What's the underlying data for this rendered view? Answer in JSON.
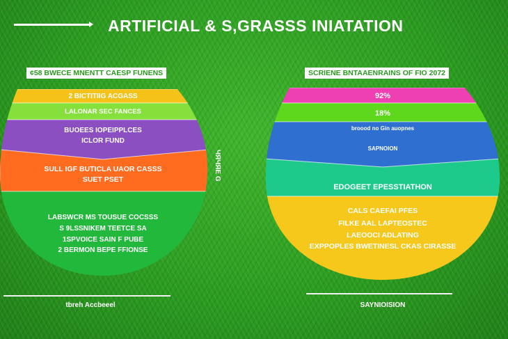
{
  "title": "ARTIFICIAL & S,GRASSS INIATATION",
  "side_label": "ЧЯЧЯЕ G",
  "colors": {
    "background": "#2a9a1f",
    "text": "#ffffff"
  },
  "chart_data": [
    {
      "type": "pie",
      "title": "¢58 BWECE MNENTT CAESP FUNENS",
      "footer": "tbreh Accbeeel",
      "segments": [
        {
          "lines": [
            "2 BICTITIIG ACGASS"
          ],
          "color": "#f5c21a"
        },
        {
          "lines": [
            "LALONAR SEC FANCES"
          ],
          "color": "#86e03c"
        },
        {
          "lines": [
            "BUOEES IOPEIPPLCES",
            "ICLOR FUND"
          ],
          "color": "#8b4fc2"
        },
        {
          "lines": [
            "SULL IGF BUTICLA UAOR CASSS",
            "SUET PSET"
          ],
          "color": "#ff6b1f"
        },
        {
          "lines": [
            "LABSWCR MS TOUSUE COCSSS",
            "S 9LSSNIKEM TEETCE SA",
            "1SPVOICE SAIN F PUBE",
            "2 BERMON BEPE FFIONSE"
          ],
          "color": "#22b83c"
        }
      ]
    },
    {
      "type": "pie",
      "title": "SCRIENE BNTAAENRAINS OF FIO 2072",
      "footer": "SAYNIOISION",
      "segments": [
        {
          "lines": [
            "92%"
          ],
          "color": "#ee3fb3"
        },
        {
          "lines": [
            "18%"
          ],
          "color": "#5ed81c"
        },
        {
          "lines": [
            "broood no Gin auopnes",
            "SAPNOION"
          ],
          "color": "#2f6fd0"
        },
        {
          "lines": [
            "EDOGEET EPESSTIATHON"
          ],
          "color": "#1ec98c"
        },
        {
          "lines": [
            "CALS CAEFAI PFES",
            "FILKE AAL LAPTEOSTEC",
            "LAEOOCI ADLATING",
            "EXPPOPLES BWETINESL CKAS CIRASSE"
          ],
          "color": "#f7c81c"
        }
      ]
    }
  ]
}
